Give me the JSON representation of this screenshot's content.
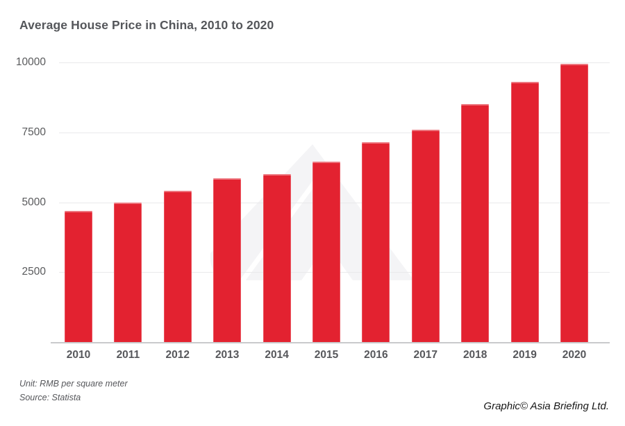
{
  "title": "Average House Price in China, 2010 to 2020",
  "chart_data": {
    "type": "bar",
    "categories": [
      "2010",
      "2011",
      "2012",
      "2013",
      "2014",
      "2015",
      "2016",
      "2017",
      "2018",
      "2019",
      "2020"
    ],
    "values": [
      4700,
      5000,
      5400,
      5850,
      6000,
      6450,
      7150,
      7600,
      8500,
      9300,
      9950
    ],
    "title": "Average House Price in China, 2010 to 2020",
    "xlabel": "",
    "ylabel": "",
    "unit": "RMB per square meter",
    "ylim": [
      0,
      10000
    ],
    "yticks": [
      2500,
      5000,
      7500,
      10000
    ],
    "grid": true,
    "legend": "none",
    "bar_color": "#e32230"
  },
  "footer": {
    "unit_line": "Unit: RMB per square meter",
    "source_line": "Source: Statista"
  },
  "credit_line": "Graphic© Asia Briefing Ltd.",
  "colors": {
    "bar": "#e32230",
    "title_text": "#54565a",
    "axis_text": "#595a5c",
    "gridline": "#e9e9eb",
    "axis_line": "#c9cacc",
    "watermark": "#f4f4f6",
    "background": "#ffffff"
  },
  "watermark": {
    "name": "asia-briefing-logo-watermark"
  }
}
